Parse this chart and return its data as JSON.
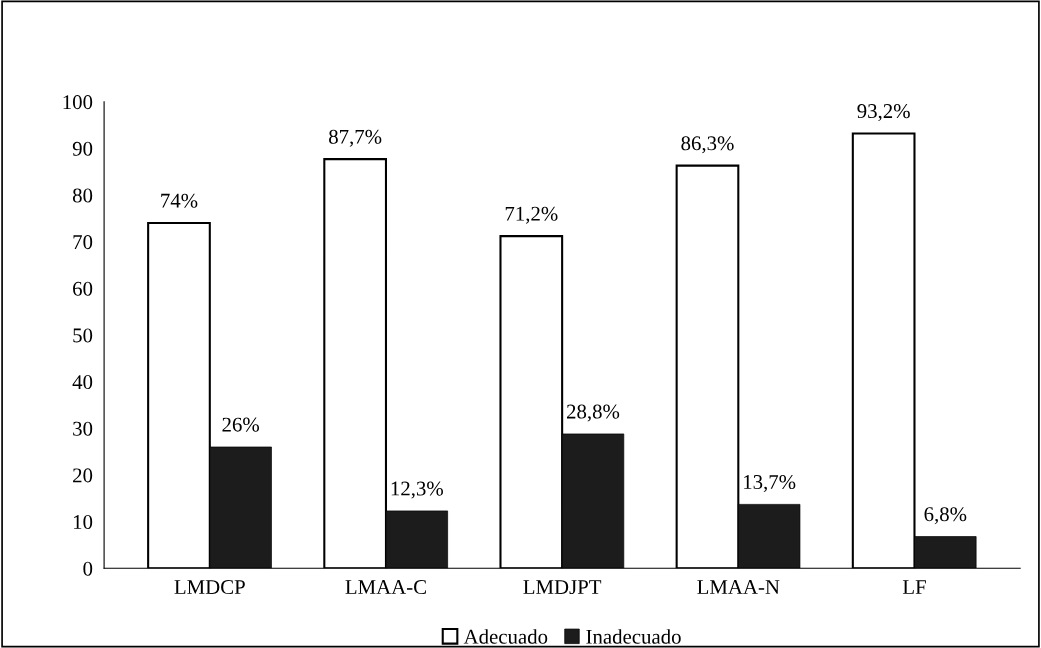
{
  "chart_data": {
    "type": "bar",
    "categories": [
      "LMDCP",
      "LMAA-C",
      "LMDJPT",
      "LMAA-N",
      "LF"
    ],
    "series": [
      {
        "name": "Adecuado",
        "color": "#ffffff",
        "values": [
          74,
          87.7,
          71.2,
          86.3,
          93.2
        ],
        "value_labels": [
          "74%",
          "87,7%",
          "71,2%",
          "86,3%",
          "93,2%"
        ]
      },
      {
        "name": "Inadecuado",
        "color": "#1c1c1c",
        "values": [
          26,
          12.3,
          28.8,
          13.7,
          6.8
        ],
        "value_labels": [
          "26%",
          "12,3%",
          "28,8%",
          "13,7%",
          "6,8%"
        ]
      }
    ],
    "ylim": [
      0,
      100
    ],
    "yticks": [
      0,
      10,
      20,
      30,
      40,
      50,
      60,
      70,
      80,
      90,
      100
    ],
    "grid": false,
    "legend": "bottom"
  }
}
